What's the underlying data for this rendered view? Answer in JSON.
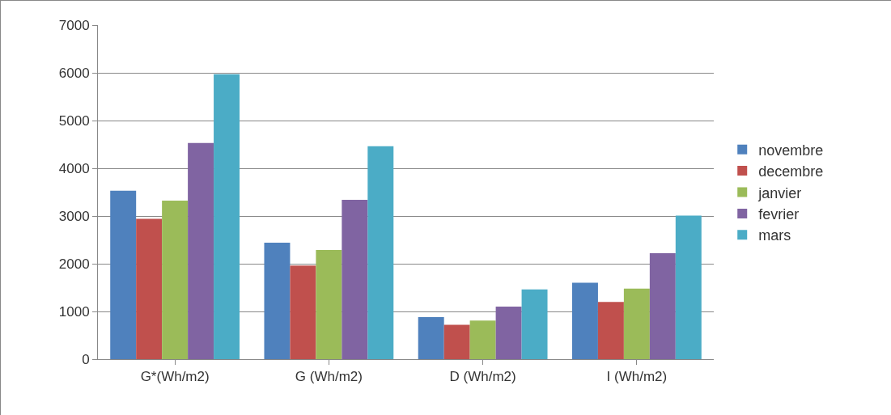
{
  "chart_data": {
    "type": "bar",
    "categories": [
      "G*(Wh/m2)",
      "G (Wh/m2)",
      "D (Wh/m2)",
      "I (Wh/m2)"
    ],
    "series": [
      {
        "name": "novembre",
        "color": "#4f81bd",
        "values": [
          3530,
          2440,
          880,
          1600
        ]
      },
      {
        "name": "decembre",
        "color": "#c0504d",
        "values": [
          2940,
          1960,
          720,
          1200
        ]
      },
      {
        "name": "janvier",
        "color": "#9bbb59",
        "values": [
          3320,
          2290,
          810,
          1480
        ]
      },
      {
        "name": "fevrier",
        "color": "#8064a2",
        "values": [
          4530,
          3340,
          1100,
          2220
        ]
      },
      {
        "name": "mars",
        "color": "#4bacc6",
        "values": [
          5970,
          4460,
          1460,
          3010
        ]
      }
    ],
    "ylim": [
      0,
      7000
    ],
    "yticks": [
      0,
      1000,
      2000,
      3000,
      4000,
      5000,
      6000,
      7000
    ],
    "grid": "y",
    "legend": "right"
  }
}
